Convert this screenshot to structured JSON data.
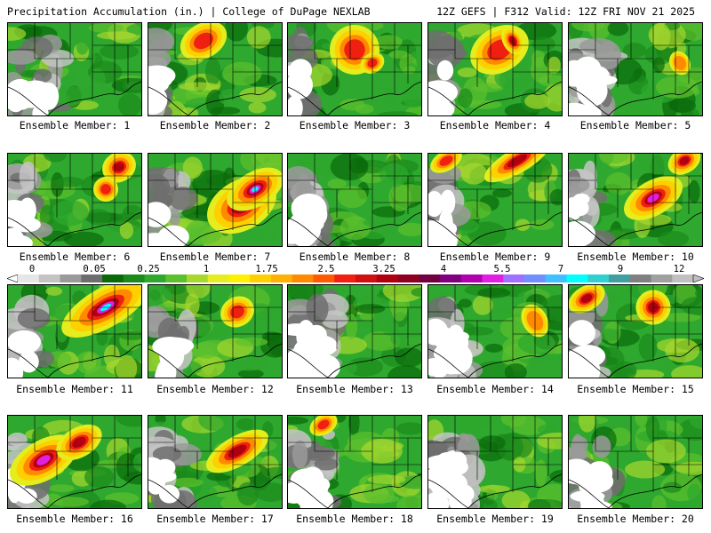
{
  "header": {
    "title_left": "Precipitation Accumulation (in.) | College of DuPage NEXLAB",
    "title_right": "12Z GEFS | F312 Valid: 12Z FRI NOV 21 2025"
  },
  "colorbar": {
    "labels": [
      "0",
      "0.05",
      "0.25",
      "1",
      "1.75",
      "2.5",
      "3.25",
      "4",
      "5.5",
      "7",
      "9",
      "12"
    ],
    "colors": [
      "#e6e6e6",
      "#c4c4c4",
      "#9a9a9a",
      "#6e6e6e",
      "#0a6a0a",
      "#1b8a1b",
      "#2ea82e",
      "#5cc02e",
      "#a6d82e",
      "#e4ee1e",
      "#fff000",
      "#ffd000",
      "#ffb000",
      "#ff8a00",
      "#ff5a00",
      "#f02010",
      "#d01010",
      "#b00010",
      "#900020",
      "#700040",
      "#800080",
      "#b000b0",
      "#e020e0",
      "#a070ff",
      "#7090ff",
      "#40c0ff",
      "#00ffff",
      "#30d0d0",
      "#40a0a0",
      "#808080",
      "#a0a0a0",
      "#c0c0c0"
    ]
  },
  "members": [
    {
      "label": "Ensemble Member: 1"
    },
    {
      "label": "Ensemble Member: 2"
    },
    {
      "label": "Ensemble Member: 3"
    },
    {
      "label": "Ensemble Member: 4"
    },
    {
      "label": "Ensemble Member: 5"
    },
    {
      "label": "Ensemble Member: 6"
    },
    {
      "label": "Ensemble Member: 7"
    },
    {
      "label": "Ensemble Member: 8"
    },
    {
      "label": "Ensemble Member: 9"
    },
    {
      "label": "Ensemble Member: 10"
    },
    {
      "label": "Ensemble Member: 11"
    },
    {
      "label": "Ensemble Member: 12"
    },
    {
      "label": "Ensemble Member: 13"
    },
    {
      "label": "Ensemble Member: 14"
    },
    {
      "label": "Ensemble Member: 15"
    },
    {
      "label": "Ensemble Member: 16"
    },
    {
      "label": "Ensemble Member: 17"
    },
    {
      "label": "Ensemble Member: 18"
    },
    {
      "label": "Ensemble Member: 19"
    },
    {
      "label": "Ensemble Member: 20"
    }
  ]
}
